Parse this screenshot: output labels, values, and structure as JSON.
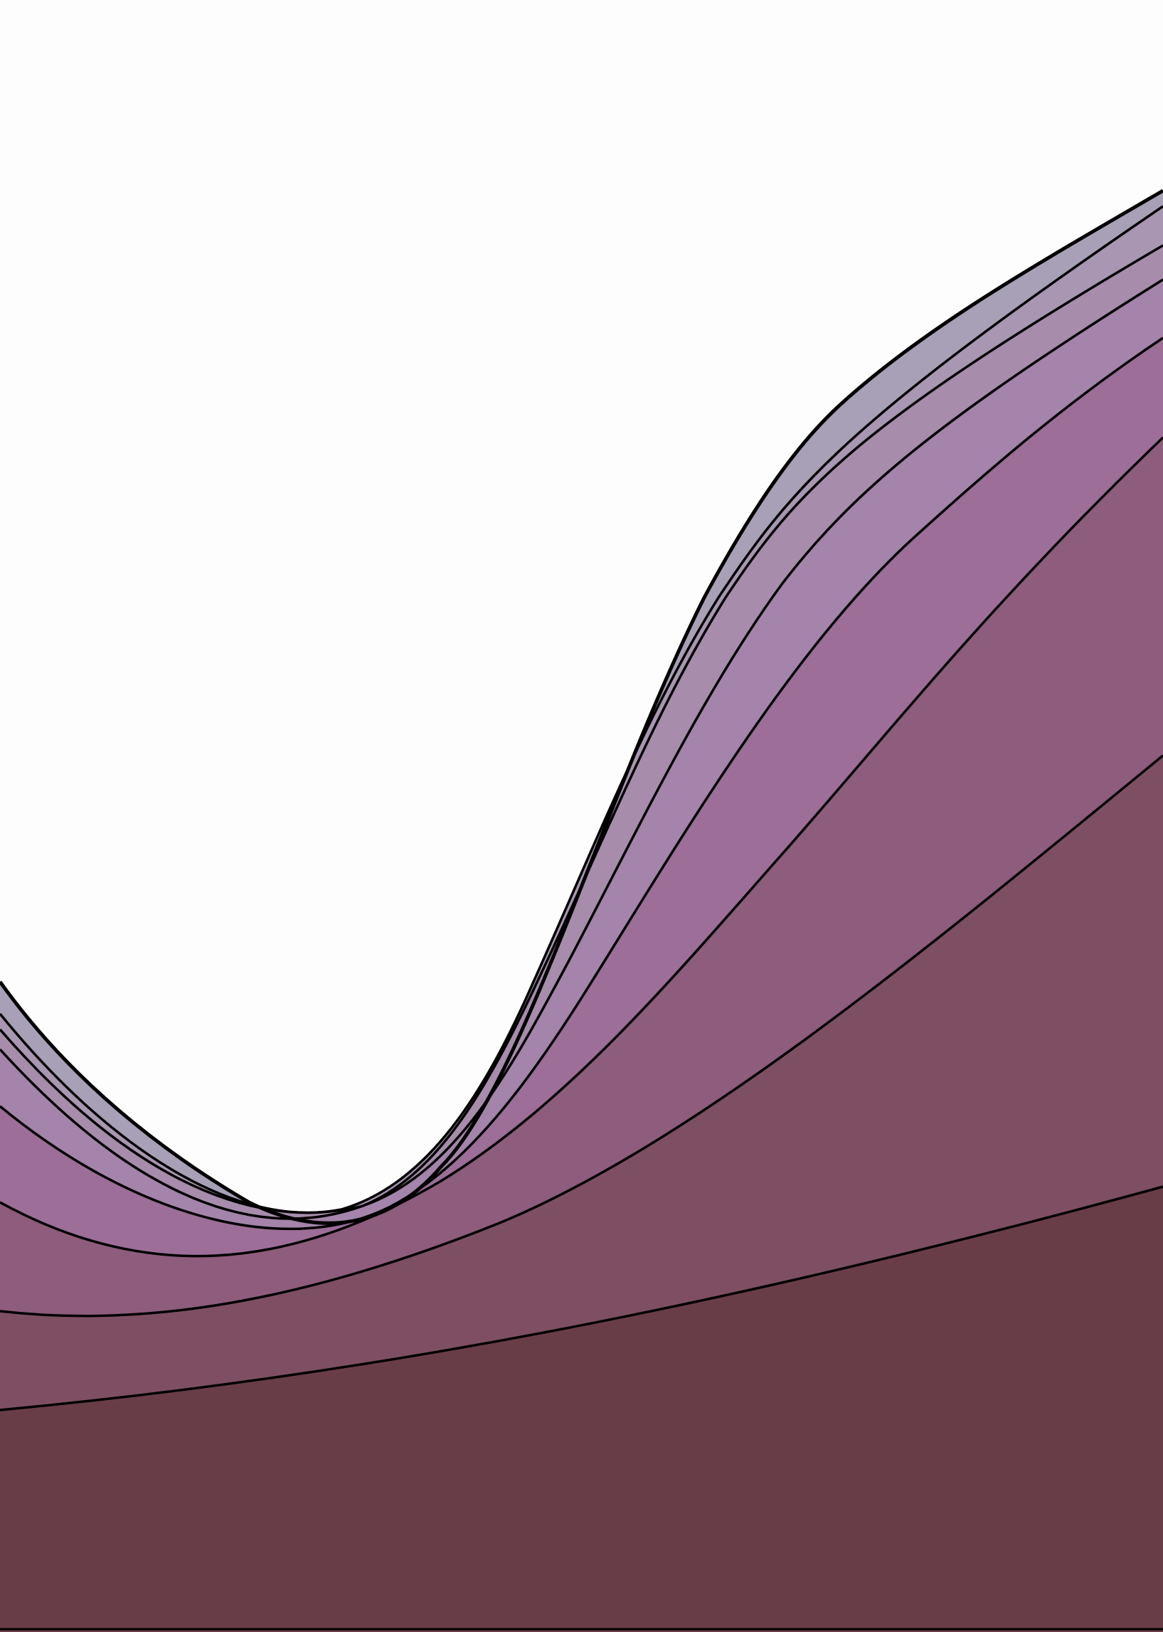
{
  "palette": {
    "background": "#fdfdfd",
    "outline": "#000000",
    "bands": [
      "#693d47",
      "#7e4f63",
      "#8e5c7c",
      "#9c6e98",
      "#a484aa",
      "#a78cac",
      "#a896b2",
      "#a8a0b6"
    ]
  }
}
